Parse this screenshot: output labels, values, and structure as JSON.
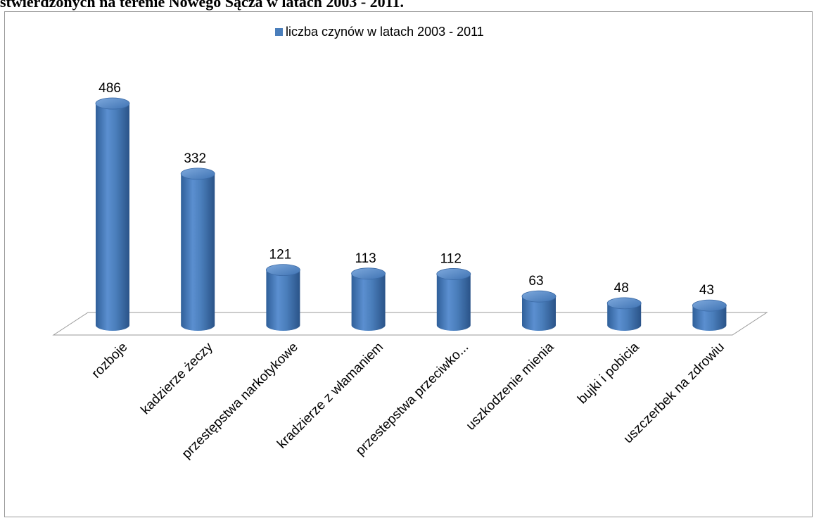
{
  "page": {
    "title_fragment": "stwierdzonych na terenie Nowego Sącza w latach 2003 - 2011."
  },
  "chart_data": {
    "type": "bar",
    "categories": [
      "rozboje",
      "kadzierze żeczy",
      "przestępstwa narkotykowe",
      "kradzierze z włamaniem",
      "przestepstwa przeciwko...",
      "uszkodzenie mienia",
      "bujki i pobicia",
      "uszczerbek na zdrowiu"
    ],
    "series": [
      {
        "name": "liczba czynów w latach 2003 - 2011",
        "values": [
          486,
          332,
          121,
          113,
          112,
          63,
          48,
          43
        ]
      }
    ],
    "data_labels": [
      "486",
      "332",
      "121",
      "113",
      "112",
      "63",
      "48",
      "43"
    ],
    "legend_position": "top",
    "grid": false,
    "ylim": [
      0,
      500
    ],
    "colors": {
      "bar": "#4a7ebb",
      "bar_dark": "#2c5a93",
      "bar_light": "#7fa7d9"
    }
  }
}
